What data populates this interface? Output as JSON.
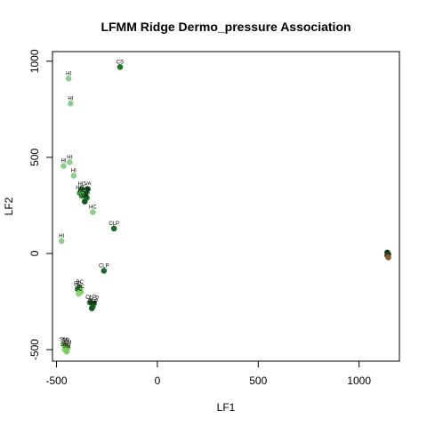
{
  "chart_data": {
    "type": "scatter",
    "title": "LFMM Ridge Dermo_pressure Association",
    "xlabel": "LF1",
    "ylabel": "LF2",
    "xlim": [
      -520,
      1200
    ],
    "ylim": [
      -560,
      1050
    ],
    "xticks": [
      -500,
      0,
      500,
      1000
    ],
    "yticks": [
      -500,
      0,
      500,
      1000
    ],
    "grid": false,
    "points": [
      {
        "x": -185,
        "y": 970,
        "label": "CS",
        "color": "#1a7a2a"
      },
      {
        "x": -440,
        "y": 910,
        "label": "HI",
        "color": "#8ccf8c"
      },
      {
        "x": -430,
        "y": 780,
        "label": "HI",
        "color": "#8ccf8c"
      },
      {
        "x": -435,
        "y": 475,
        "label": "HI",
        "color": "#8ccf8c"
      },
      {
        "x": -465,
        "y": 455,
        "label": "HI",
        "color": "#8ccf8c"
      },
      {
        "x": -415,
        "y": 405,
        "label": "HI",
        "color": "#8ccf8c"
      },
      {
        "x": -375,
        "y": 335,
        "label": "HC",
        "color": "#2e8b3a"
      },
      {
        "x": -345,
        "y": 335,
        "label": "VA",
        "color": "#0f5a1e"
      },
      {
        "x": -385,
        "y": 315,
        "label": "HC",
        "color": "#3a9a45"
      },
      {
        "x": -355,
        "y": 310,
        "label": "VA",
        "color": "#1f6e2b"
      },
      {
        "x": -375,
        "y": 300,
        "label": "HC",
        "color": "#2e8b3a"
      },
      {
        "x": -350,
        "y": 290,
        "label": "VA",
        "color": "#1f6e2b"
      },
      {
        "x": -360,
        "y": 270,
        "label": "VA",
        "color": "#0f5a1e"
      },
      {
        "x": -320,
        "y": 215,
        "label": "HC",
        "color": "#8ccf8c"
      },
      {
        "x": -215,
        "y": 130,
        "label": "CLP",
        "color": "#1a6b28"
      },
      {
        "x": -475,
        "y": 65,
        "label": "HI",
        "color": "#8ccf8c"
      },
      {
        "x": -265,
        "y": -90,
        "label": "CLP",
        "color": "#1a6b28"
      },
      {
        "x": -385,
        "y": -175,
        "label": "BC",
        "color": "#6fbf55"
      },
      {
        "x": -395,
        "y": -185,
        "label": "BC",
        "color": "#4aa84a"
      },
      {
        "x": -380,
        "y": -200,
        "label": "BC",
        "color": "#7ccc5a"
      },
      {
        "x": -390,
        "y": -210,
        "label": "BC",
        "color": "#8fd66a"
      },
      {
        "x": -330,
        "y": -255,
        "label": "CLP",
        "color": "#1a6b28"
      },
      {
        "x": -315,
        "y": -260,
        "label": "CLP",
        "color": "#0f5a1e"
      },
      {
        "x": -320,
        "y": -275,
        "label": "CLP",
        "color": "#1a6b28"
      },
      {
        "x": -325,
        "y": -285,
        "label": "CLP",
        "color": "#0f5a1e"
      },
      {
        "x": -465,
        "y": -475,
        "label": "SM",
        "color": "#7ccc5a"
      },
      {
        "x": -455,
        "y": -480,
        "label": "SM",
        "color": "#8fd66a"
      },
      {
        "x": -445,
        "y": -490,
        "label": "SM",
        "color": "#6fbf55"
      },
      {
        "x": -460,
        "y": -500,
        "label": "SM",
        "color": "#8fd66a"
      },
      {
        "x": -450,
        "y": -510,
        "label": "SM",
        "color": "#7ccc5a"
      },
      {
        "x": 1140,
        "y": 5,
        "label": "",
        "color": "#0a3d14"
      },
      {
        "x": 1145,
        "y": -5,
        "label": "",
        "color": "#0a3d14"
      },
      {
        "x": 1140,
        "y": -10,
        "label": "",
        "color": "#3a3a2a"
      },
      {
        "x": 1145,
        "y": -20,
        "label": "",
        "color": "#8b5a2b"
      }
    ]
  }
}
